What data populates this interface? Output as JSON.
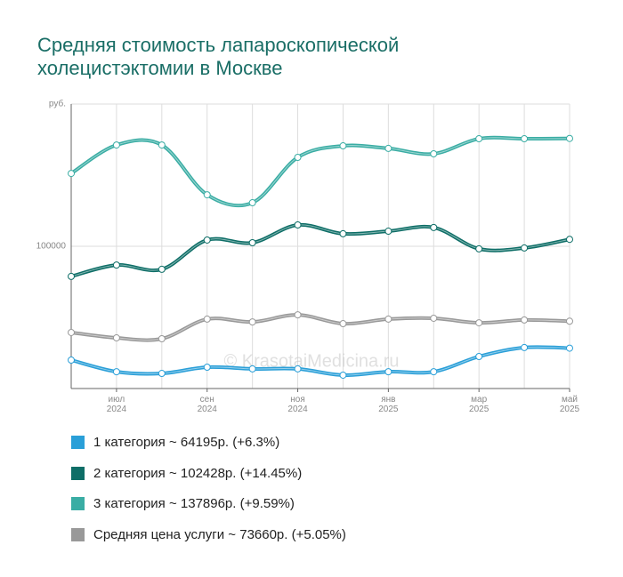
{
  "chart_data": {
    "type": "line",
    "title": "Средняя стоимость лапароскопической холецистэктомии в Москве",
    "watermark": "© KrasotaiMedicina.ru",
    "categories": [
      null,
      "июл 2024",
      null,
      "сен 2024",
      null,
      "ноя 2024",
      null,
      "янв 2025",
      null,
      "мар 2025",
      null,
      "май 2025"
    ],
    "ylim": [
      50000,
      150000
    ],
    "yticks": [
      100000,
      {
        "value": 150000,
        "label": "руб."
      }
    ],
    "grid": true,
    "series": [
      {
        "name": "1 категория ~ 64195р. (+6.3%)",
        "color": "#2a9fd8",
        "values": [
          60000,
          55900,
          55300,
          57500,
          56900,
          56900,
          54700,
          55900,
          55900,
          61250,
          64400,
          64195
        ]
      },
      {
        "name": "2 категория ~ 102428р. (+14.45%)",
        "color": "#0e6e67",
        "values": [
          89400,
          93400,
          91900,
          102200,
          101250,
          107500,
          104400,
          105300,
          106600,
          99100,
          99400,
          102428
        ]
      },
      {
        "name": "3 категория ~ 137896р. (+9.59%)",
        "color": "#3aada4",
        "values": [
          125600,
          135600,
          135600,
          118100,
          115300,
          131250,
          135300,
          134400,
          132500,
          137800,
          137800,
          137896
        ]
      },
      {
        "name": "Средняя цена услуги ~ 73660р. (+5.05%)",
        "color": "#999999",
        "values": [
          69700,
          67800,
          67500,
          74400,
          73400,
          75900,
          72800,
          74400,
          74700,
          73100,
          74100,
          73660
        ]
      }
    ]
  }
}
